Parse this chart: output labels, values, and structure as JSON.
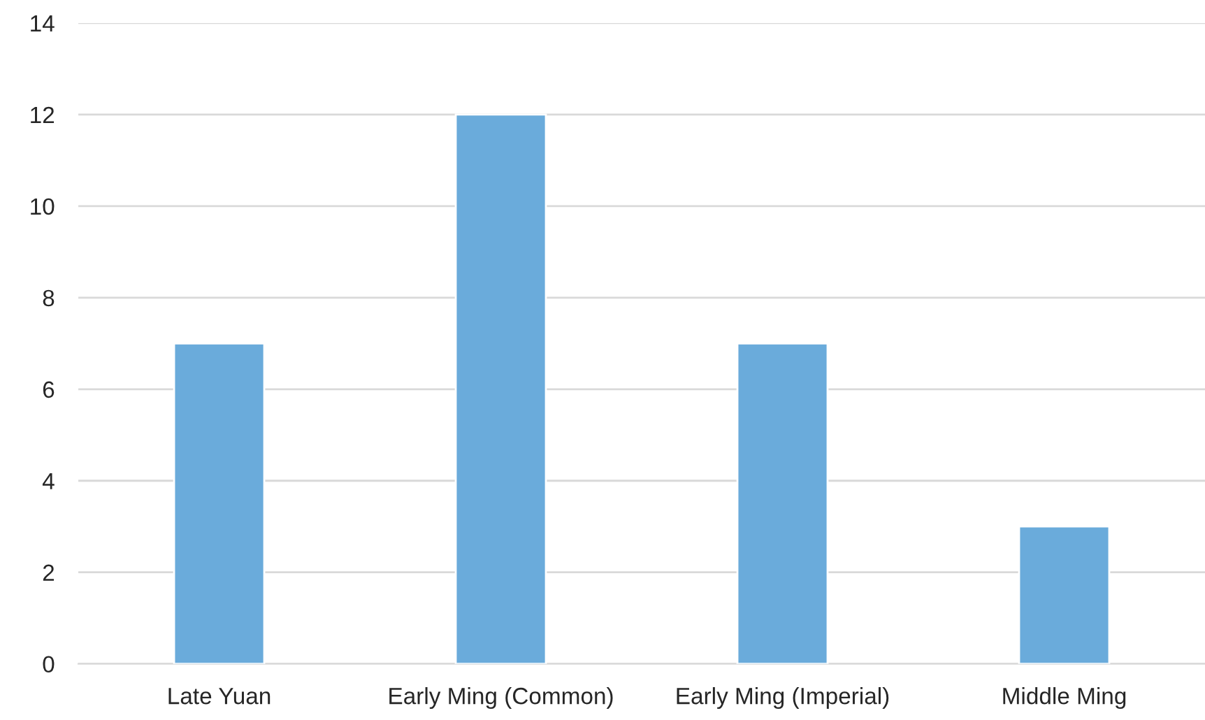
{
  "chart_data": {
    "type": "bar",
    "categories": [
      "Late Yuan",
      "Early Ming (Common)",
      "Early Ming (Imperial)",
      "Middle Ming"
    ],
    "values": [
      7,
      12,
      7,
      3
    ],
    "color": "#6aabdb",
    "ylim": [
      0,
      14
    ],
    "yticks": [
      0,
      2,
      4,
      6,
      8,
      10,
      12,
      14
    ],
    "grid": "y",
    "legend": false
  }
}
